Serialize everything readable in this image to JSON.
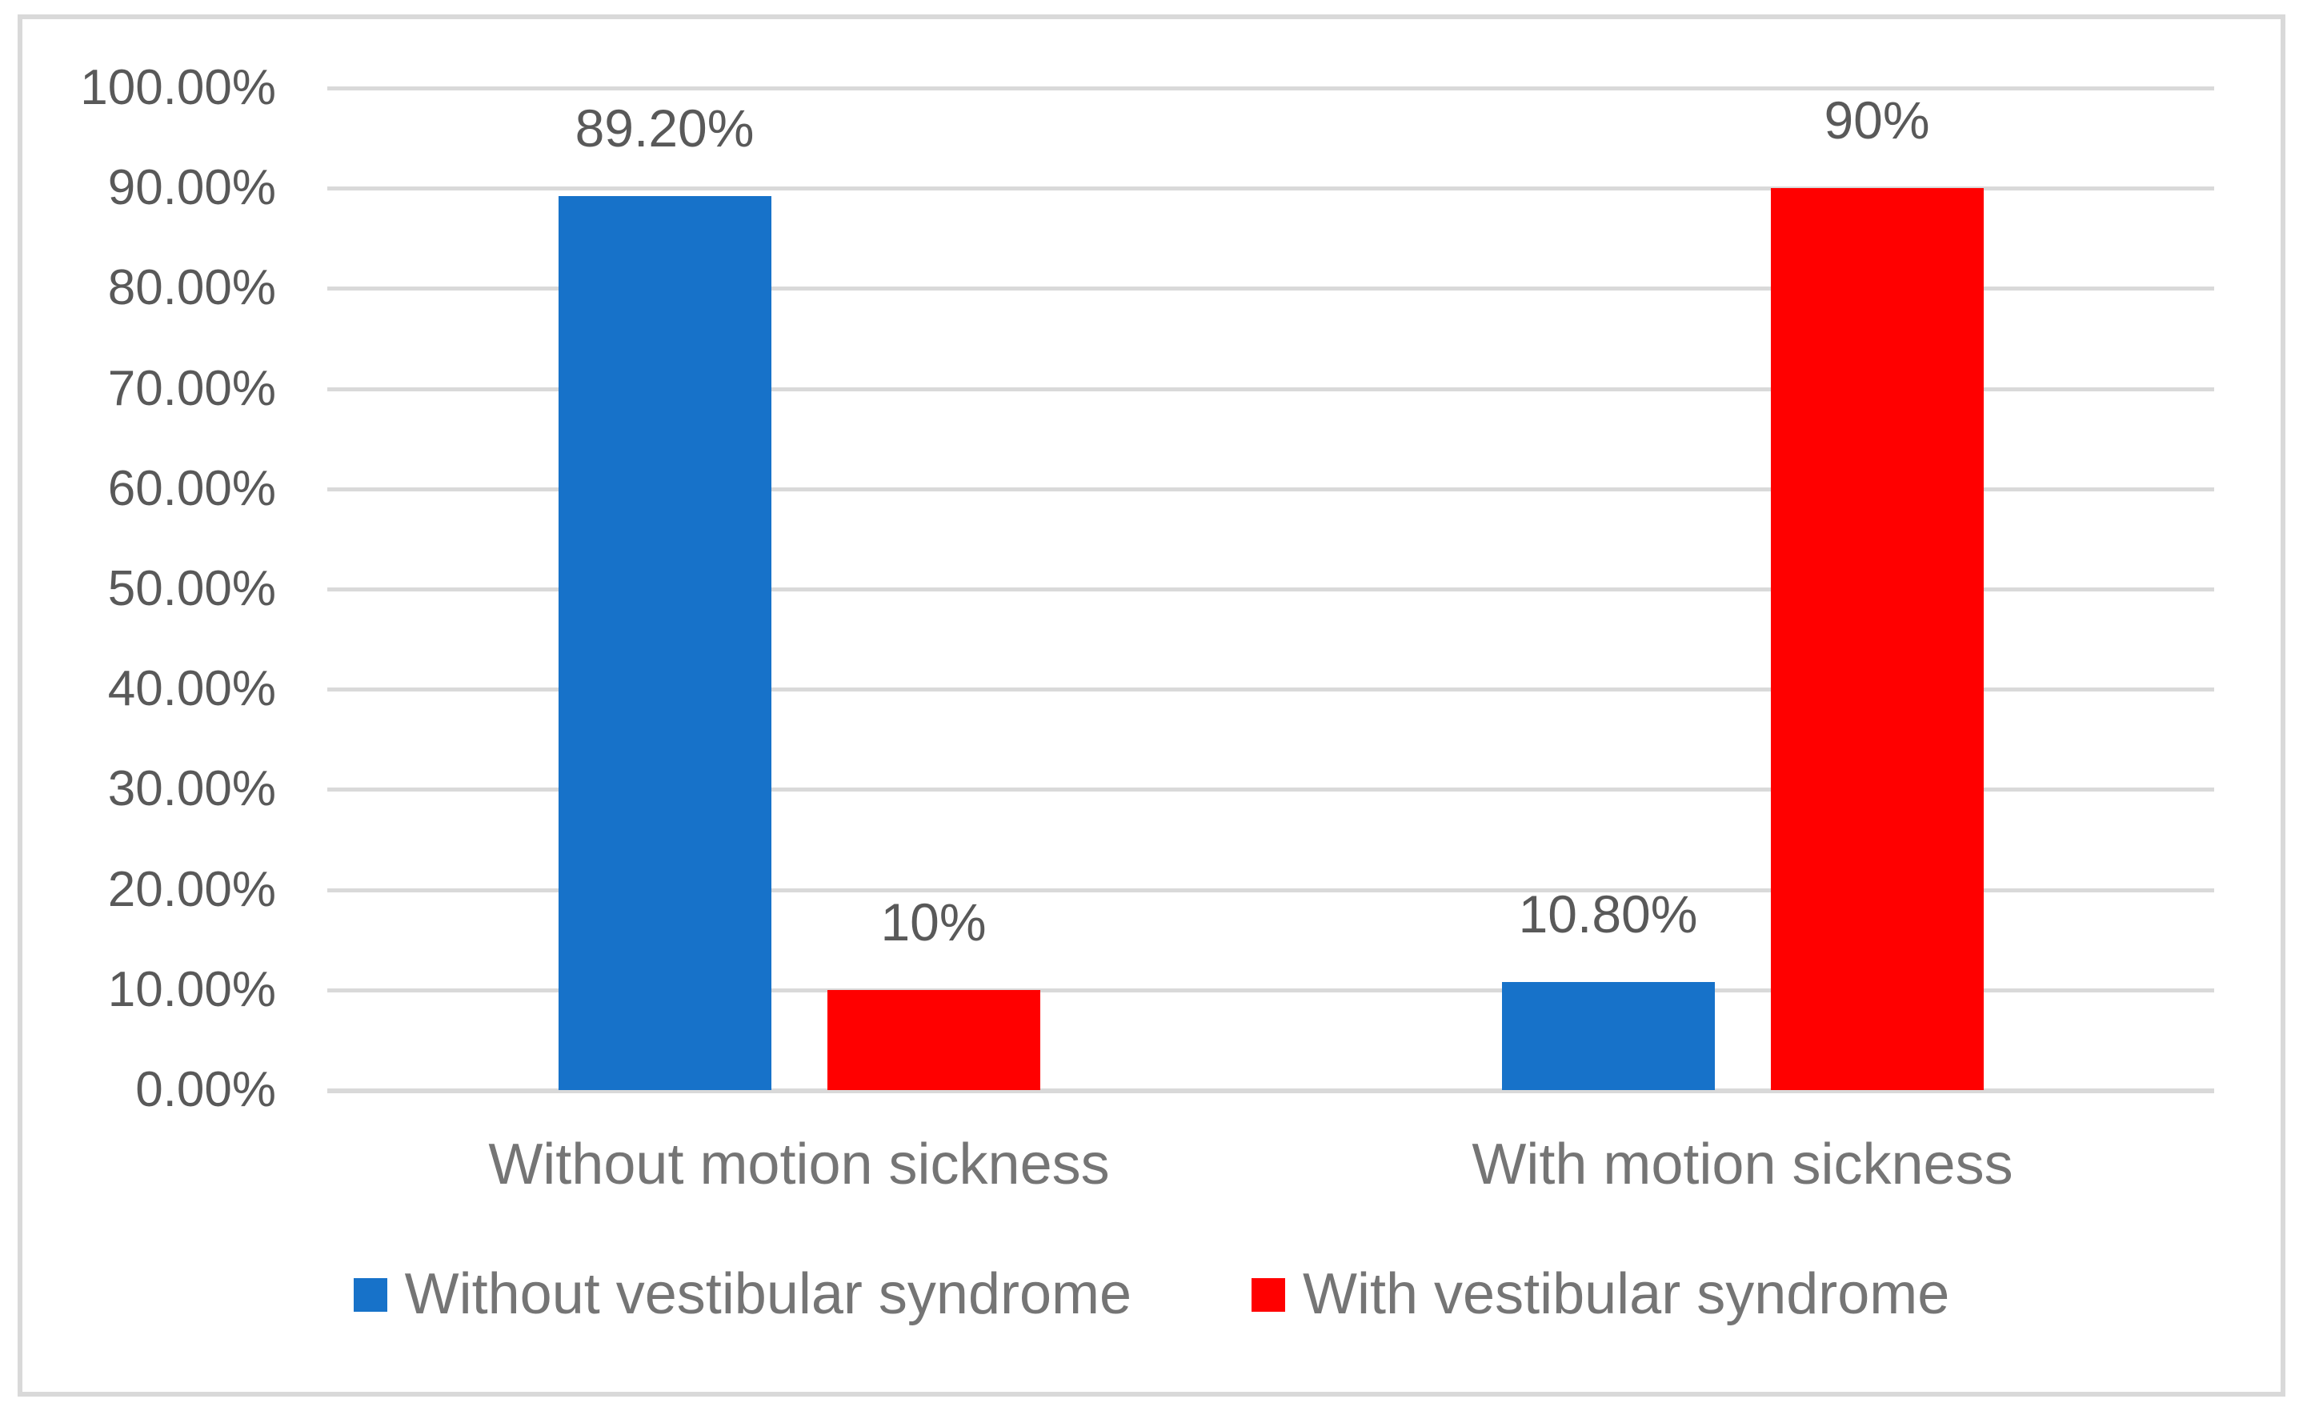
{
  "chart_data": {
    "type": "bar",
    "categories": [
      "Without motion sickness",
      "With motion sickness"
    ],
    "series": [
      {
        "name": "Without vestibular syndrome",
        "color": "#1772C9",
        "values": [
          89.2,
          10.8
        ],
        "value_labels": [
          "89.20%",
          "10.80%"
        ]
      },
      {
        "name": "With vestibular syndrome",
        "color": "#FF0000",
        "values": [
          10,
          90
        ],
        "value_labels": [
          "10%",
          "90%"
        ]
      }
    ],
    "title": "",
    "xlabel": "",
    "ylabel": "",
    "ylim": [
      0,
      100
    ],
    "ytick_labels": [
      "100.00%",
      "90.00%",
      "80.00%",
      "70.00%",
      "60.00%",
      "50.00%",
      "40.00%",
      "30.00%",
      "20.00%",
      "10.00%",
      "0.00%"
    ],
    "grid": true,
    "legend_position": "bottom"
  },
  "colors": {
    "gridline": "#D9D9D9",
    "chart_border": "#D9D9D9",
    "axis_text": "#595959",
    "data_label_text": "#595959",
    "category_text": "#757575",
    "legend_text": "#757575",
    "background": "#FFFFFF"
  }
}
